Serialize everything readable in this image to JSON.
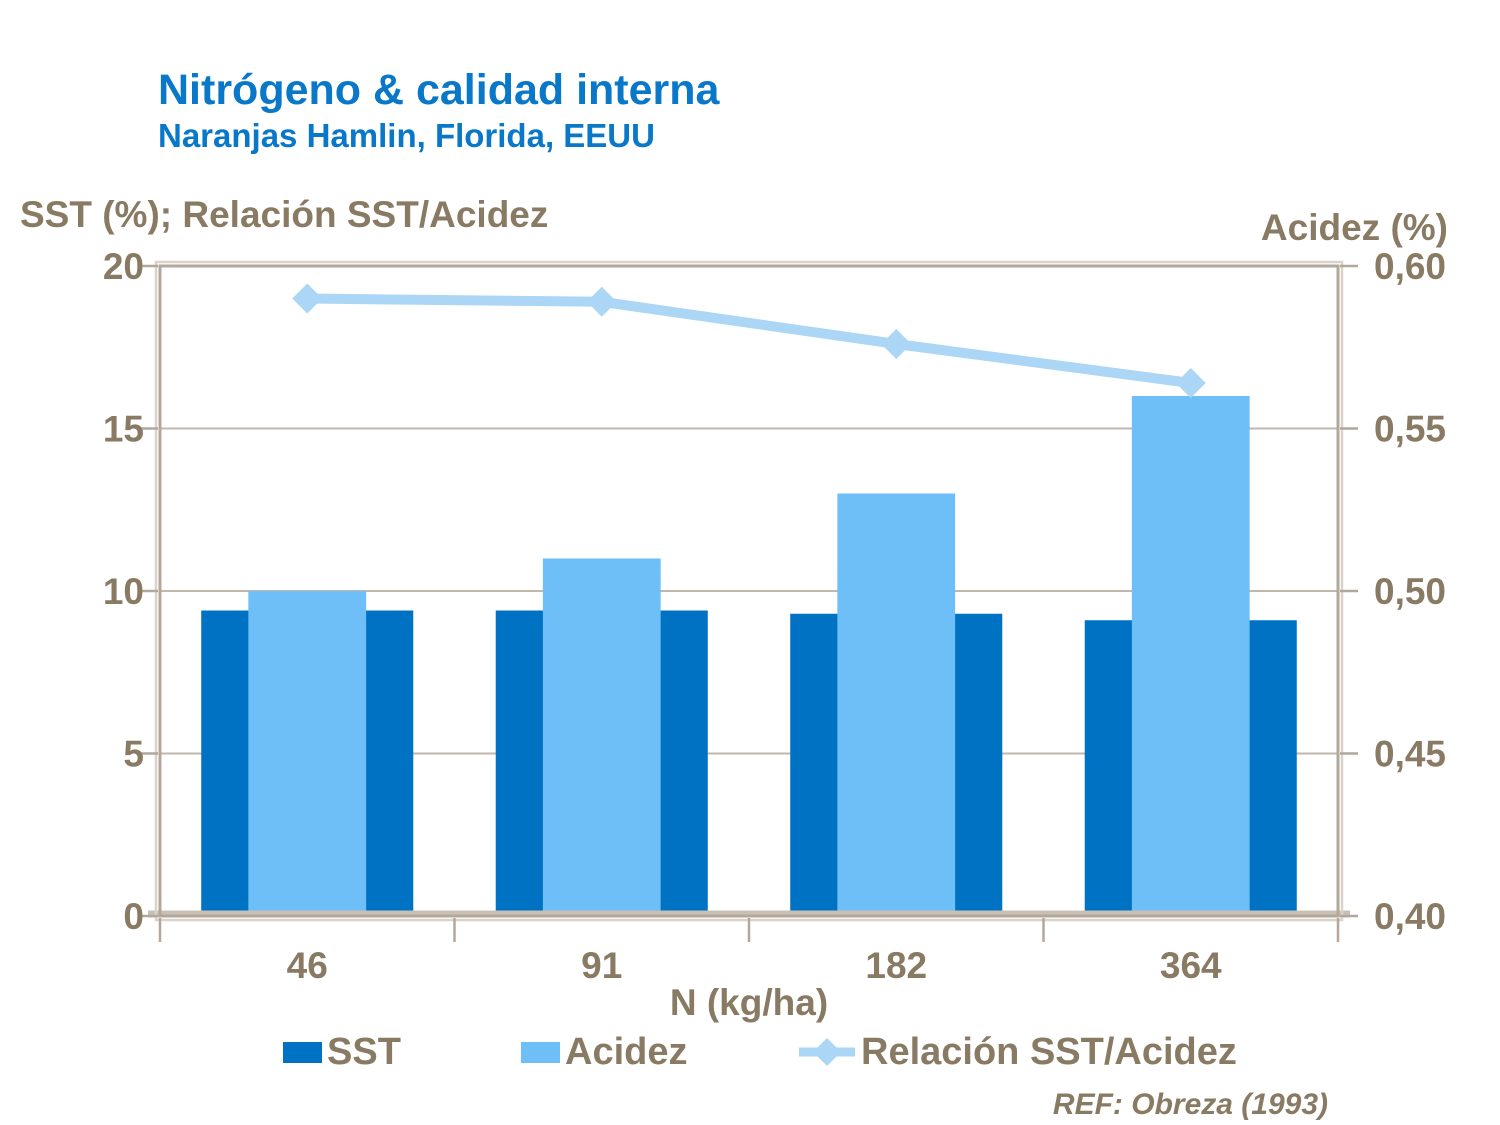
{
  "page": {
    "title": "Nitrógeno & calidad interna",
    "subtitle": "Naranjas Hamlin, Florida, EEUU",
    "ref_note": "REF: Obreza (1993)"
  },
  "colors": {
    "title_blue": "#0A78C8",
    "sst_bar": "#0072C3",
    "acidez_bar": "#6EBEF8",
    "ratio_line": "#ABD6F6",
    "axis_text": "#897A63",
    "gridline": "#C1B8AB",
    "plot_border": "#B2A79A",
    "plot_border_light": "#DAD3C9",
    "axis_baseline": "#C9C0B4"
  },
  "chart_data": {
    "type": "combo_bar_line",
    "title": "Nitrógeno & calidad interna",
    "subtitle": "Naranjas Hamlin, Florida, EEUU",
    "categories": [
      "46",
      "91",
      "182",
      "364"
    ],
    "xlabel": "N (kg/ha)",
    "left_axis": {
      "title": "SST (%); Relación SST/Acidez",
      "min": 0,
      "max": 20,
      "tick_values": [
        0,
        5,
        10,
        15,
        20
      ],
      "tick_labels": [
        "0",
        "5",
        "10",
        "15",
        "20"
      ]
    },
    "right_axis": {
      "title": "Acidez (%)",
      "min": 0.4,
      "max": 0.6,
      "tick_values": [
        0.4,
        0.45,
        0.5,
        0.55,
        0.6
      ],
      "tick_labels": [
        "0,40",
        "0,45",
        "0,50",
        "0,55",
        "0,60"
      ]
    },
    "series": [
      {
        "name": "SST",
        "type": "bar",
        "axis": "left",
        "color": "#0072C3",
        "values": [
          9.4,
          9.4,
          9.3,
          9.1
        ]
      },
      {
        "name": "Acidez",
        "type": "bar",
        "axis": "right",
        "color": "#6EBEF8",
        "values": [
          0.5,
          0.51,
          0.53,
          0.56
        ]
      },
      {
        "name": "Relación SST/Acidez",
        "type": "line",
        "axis": "left",
        "color": "#ABD6F6",
        "marker": "diamond",
        "values": [
          19.0,
          18.9,
          17.6,
          16.4
        ]
      }
    ],
    "grid": "horizontal",
    "legend_position": "bottom"
  },
  "legend": {
    "items": [
      {
        "label": "SST",
        "marker": "square"
      },
      {
        "label": "Acidez",
        "marker": "square"
      },
      {
        "label": "Relación SST/Acidez",
        "marker": "line-diamond"
      }
    ]
  }
}
